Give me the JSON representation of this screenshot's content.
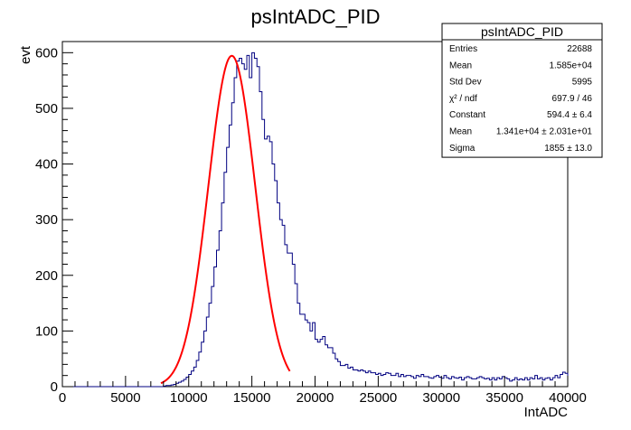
{
  "chart_data": {
    "type": "histogram",
    "title": "psIntADC_PID",
    "xlabel": "IntADC",
    "ylabel": "evt",
    "xlim": [
      0,
      40000
    ],
    "ylim": [
      0,
      620
    ],
    "x_ticks": [
      0,
      5000,
      10000,
      15000,
      20000,
      25000,
      30000,
      35000,
      40000
    ],
    "x_tick_labels": [
      "0",
      "5000",
      "10000",
      "15000",
      "20000",
      "25000",
      "30000",
      "35000",
      "40000"
    ],
    "y_ticks": [
      0,
      100,
      200,
      300,
      400,
      500,
      600
    ],
    "y_tick_labels": [
      "0",
      "100",
      "200",
      "300",
      "400",
      "500",
      "600"
    ],
    "grid": false,
    "bin_width": 200,
    "bin_start": 0,
    "histogram_color": "#000080",
    "fit_color": "#ff0000",
    "counts": [
      0,
      0,
      0,
      0,
      0,
      0,
      0,
      0,
      0,
      0,
      0,
      0,
      0,
      0,
      0,
      0,
      0,
      0,
      0,
      0,
      0,
      0,
      0,
      0,
      0,
      0,
      0,
      0,
      0,
      0,
      0,
      0,
      0,
      0,
      0,
      0,
      0,
      0,
      0,
      0,
      1,
      2,
      2,
      3,
      4,
      6,
      8,
      10,
      13,
      17,
      22,
      28,
      35,
      47,
      62,
      80,
      100,
      125,
      150,
      180,
      215,
      245,
      280,
      330,
      385,
      430,
      470,
      510,
      555,
      585,
      590,
      580,
      570,
      595,
      555,
      600,
      590,
      575,
      530,
      480,
      445,
      450,
      440,
      400,
      370,
      330,
      300,
      290,
      255,
      240,
      240,
      220,
      185,
      150,
      130,
      130,
      120,
      115,
      100,
      115,
      85,
      80,
      85,
      90,
      75,
      70,
      70,
      60,
      50,
      45,
      38,
      38,
      40,
      33,
      35,
      30,
      30,
      28,
      30,
      28,
      25,
      28,
      25,
      25,
      22,
      24,
      20,
      22,
      25,
      24,
      20,
      20,
      24,
      18,
      22,
      18,
      20,
      20,
      18,
      15,
      20,
      18,
      22,
      18,
      18,
      16,
      15,
      18,
      20,
      17,
      15,
      20,
      16,
      14,
      18,
      16,
      15,
      17,
      12,
      16,
      18,
      16,
      14,
      14,
      16,
      18,
      16,
      14,
      15,
      12,
      16,
      12,
      16,
      14,
      18,
      16,
      14,
      10,
      12,
      16,
      12,
      14,
      12,
      16,
      12,
      16,
      14,
      20,
      14,
      16,
      12,
      15,
      16,
      12,
      16,
      20,
      16,
      22,
      26,
      24
    ],
    "fit": {
      "function": "gaus",
      "constant": 594.4,
      "mean": 13410,
      "sigma": 1855,
      "x_range": [
        7800,
        18000
      ]
    }
  },
  "stats_box": {
    "title": "psIntADC_PID",
    "rows": [
      {
        "label": "Entries",
        "value": "22688"
      },
      {
        "label": "Mean",
        "value": "1.585e+04"
      },
      {
        "label": "Std Dev",
        "value": "5995"
      },
      {
        "label": "χ² / ndf",
        "value": "697.9 / 46"
      },
      {
        "label": "Constant",
        "value": "594.4 ± 6.4"
      },
      {
        "label": "Mean",
        "value": "1.341e+04 ± 2.031e+01"
      },
      {
        "label": "Sigma",
        "value": "1855 ± 13.0"
      }
    ]
  }
}
